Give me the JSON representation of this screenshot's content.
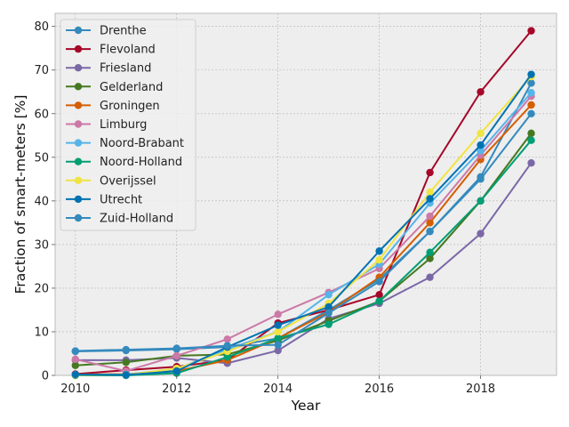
{
  "chart_data": {
    "type": "line",
    "title": "",
    "xlabel": "Year",
    "ylabel": "Fraction of smart-meters [%]",
    "xlim": [
      2009.6,
      2019.5
    ],
    "ylim": [
      0,
      83
    ],
    "xticks": [
      2010,
      2012,
      2014,
      2016,
      2018
    ],
    "yticks": [
      0,
      10,
      20,
      30,
      40,
      50,
      60,
      70,
      80
    ],
    "grid": true,
    "legend_position": "top-left",
    "x": [
      2010,
      2011,
      2012,
      2013,
      2014,
      2015,
      2016,
      2017,
      2018,
      2019
    ],
    "series": [
      {
        "name": "Drenthe",
        "color": "#348abd",
        "values": [
          5.5,
          5.7,
          6.0,
          6.5,
          8.5,
          15.0,
          22.0,
          33.0,
          45.5,
          67.0
        ]
      },
      {
        "name": "Flevoland",
        "color": "#a60628",
        "values": [
          0.3,
          1.2,
          2.0,
          3.5,
          12.0,
          15.0,
          18.5,
          46.5,
          65.0,
          79.0
        ]
      },
      {
        "name": "Friesland",
        "color": "#7a68a6",
        "values": [
          3.5,
          3.5,
          4.0,
          2.8,
          5.7,
          13.0,
          16.5,
          22.5,
          32.5,
          48.7
        ]
      },
      {
        "name": "Gelderland",
        "color": "#467821",
        "values": [
          2.3,
          3.0,
          4.5,
          4.8,
          8.0,
          12.5,
          17.0,
          26.8,
          40.0,
          55.5
        ]
      },
      {
        "name": "Groningen",
        "color": "#d55e00",
        "values": [
          0.2,
          0.3,
          1.0,
          3.5,
          8.5,
          14.5,
          22.5,
          35.0,
          49.5,
          62.0
        ]
      },
      {
        "name": "Limburg",
        "color": "#cc79a7",
        "values": [
          3.7,
          1.0,
          4.5,
          8.3,
          14.0,
          19.0,
          24.5,
          36.5,
          50.5,
          64.0
        ]
      },
      {
        "name": "Noord-Brabant",
        "color": "#56b4e9",
        "values": [
          0.1,
          0.2,
          1.5,
          6.0,
          10.0,
          18.5,
          25.5,
          39.5,
          51.5,
          64.8
        ]
      },
      {
        "name": "Noord-Holland",
        "color": "#009e73",
        "values": [
          0.0,
          0.0,
          0.5,
          4.2,
          8.5,
          11.7,
          17.0,
          28.2,
          40.0,
          53.9
        ]
      },
      {
        "name": "Overijssel",
        "color": "#f0e442",
        "values": [
          0.1,
          0.1,
          1.6,
          5.5,
          10.0,
          16.5,
          26.5,
          42.0,
          55.5,
          68.5
        ]
      },
      {
        "name": "Utrecht",
        "color": "#0072b2",
        "values": [
          0.2,
          0.1,
          1.0,
          6.5,
          11.5,
          15.7,
          28.5,
          40.5,
          52.8,
          69.0
        ]
      },
      {
        "name": "Zuid-Holland",
        "color": "#348abd",
        "values": [
          5.6,
          5.9,
          6.2,
          6.8,
          7.0,
          14.3,
          21.5,
          33.0,
          45.0,
          60.0
        ]
      }
    ]
  }
}
